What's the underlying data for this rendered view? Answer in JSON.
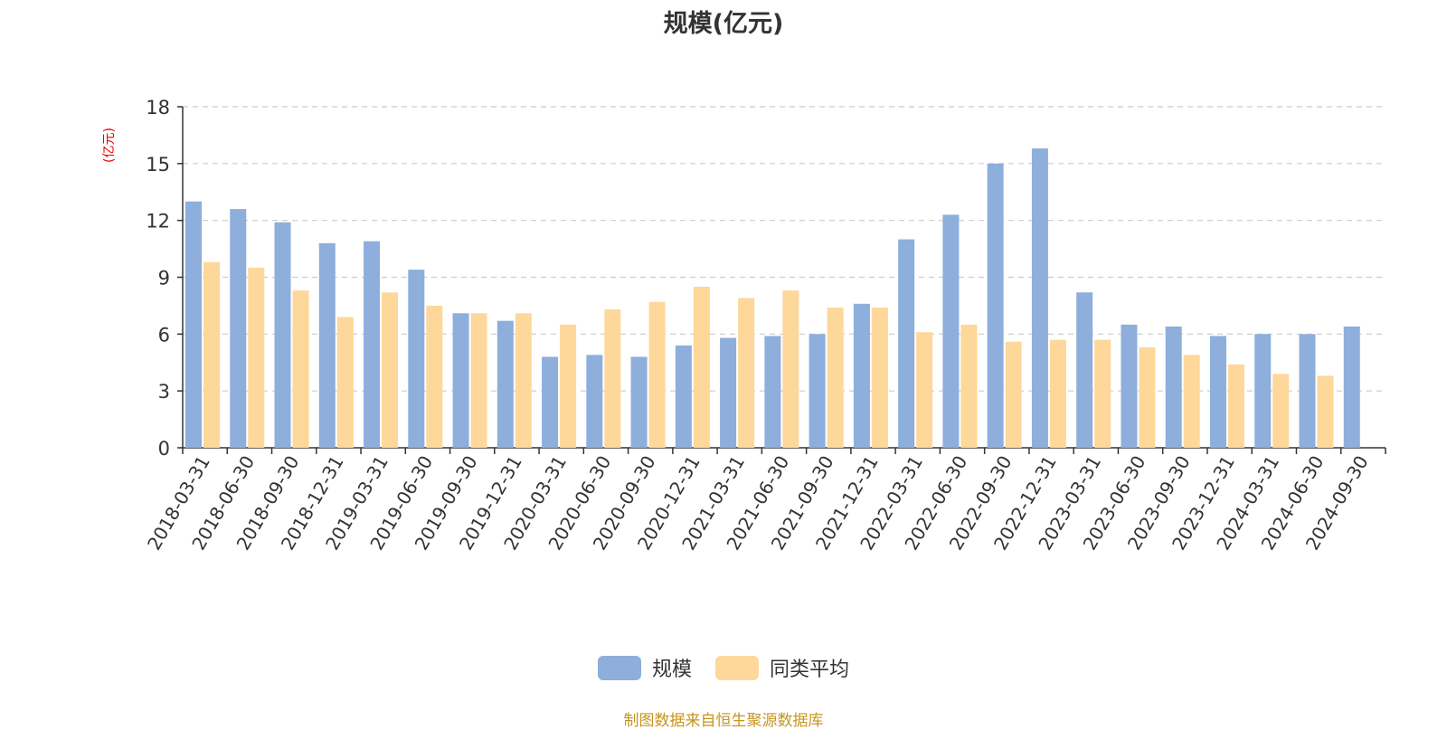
{
  "title": "规模(亿元)",
  "y_unit": "(亿元)",
  "source": "制图数据来自恒生聚源数据库",
  "colors": {
    "series1": "#8eaedc",
    "series2": "#fdd89a",
    "grid": "#cccccc",
    "axis": "#333333"
  },
  "chart_data": {
    "type": "bar",
    "title": "规模(亿元)",
    "ylabel": "(亿元)",
    "xlabel": "",
    "ylim": [
      0,
      18
    ],
    "yticks": [
      0,
      3,
      6,
      9,
      12,
      15,
      18
    ],
    "grid": true,
    "legend_position": "bottom",
    "categories": [
      "2018-03-31",
      "2018-06-30",
      "2018-09-30",
      "2018-12-31",
      "2019-03-31",
      "2019-06-30",
      "2019-09-30",
      "2019-12-31",
      "2020-03-31",
      "2020-06-30",
      "2020-09-30",
      "2020-12-31",
      "2021-03-31",
      "2021-06-30",
      "2021-09-30",
      "2021-12-31",
      "2022-03-31",
      "2022-06-30",
      "2022-09-30",
      "2022-12-31",
      "2023-03-31",
      "2023-06-30",
      "2023-09-30",
      "2023-12-31",
      "2024-03-31",
      "2024-06-30",
      "2024-09-30"
    ],
    "series": [
      {
        "name": "规模",
        "values": [
          13.0,
          12.6,
          11.9,
          10.8,
          10.9,
          9.4,
          7.1,
          6.7,
          4.8,
          4.9,
          4.8,
          5.4,
          5.8,
          5.9,
          6.0,
          7.6,
          11.0,
          12.3,
          15.0,
          15.8,
          8.2,
          6.5,
          6.4,
          5.9,
          6.0,
          6.0,
          6.4
        ]
      },
      {
        "name": "同类平均",
        "values": [
          9.8,
          9.5,
          8.3,
          6.9,
          8.2,
          7.5,
          7.1,
          7.1,
          6.5,
          7.3,
          7.7,
          8.5,
          7.9,
          8.3,
          7.4,
          7.4,
          6.1,
          6.5,
          5.6,
          5.7,
          5.7,
          5.3,
          4.9,
          4.4,
          3.9,
          3.8,
          null
        ]
      }
    ]
  }
}
